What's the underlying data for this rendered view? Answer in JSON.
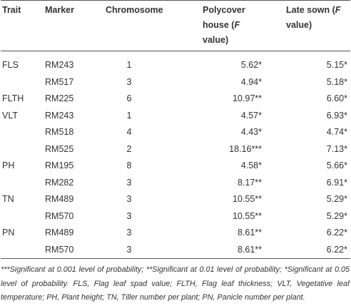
{
  "table": {
    "header": [
      "Trait",
      "Marker",
      "Chromosome",
      [
        "Polycover house (",
        "F",
        " value)"
      ],
      [
        "Late sown (",
        "F",
        " value)"
      ]
    ],
    "rows": [
      [
        "FLS",
        "RM243",
        1,
        "5.62*",
        "5.15*"
      ],
      [
        null,
        "RM517",
        3,
        "4.94*",
        "5.18*"
      ],
      [
        "FLTH",
        "RM225",
        6,
        "10.97**",
        "6.60*"
      ],
      [
        "VLT",
        "RM243",
        1,
        "4.57*",
        "6.93*"
      ],
      [
        null,
        "RM518",
        4,
        "4.43*",
        "4.74*"
      ],
      [
        null,
        "RM525",
        2,
        "18.16***",
        "7.13*"
      ],
      [
        "PH",
        "RM195",
        8,
        "4.58*",
        "5.66*"
      ],
      [
        null,
        "RM282",
        3,
        "8.17**",
        "6.91*"
      ],
      [
        "TN",
        "RM489",
        3,
        "10.55**",
        "5.29*"
      ],
      [
        null,
        "RM570",
        3,
        "10.55**",
        "5.29*"
      ],
      [
        "PN",
        "RM489",
        3,
        "8.61**",
        "6.22*"
      ],
      [
        null,
        "RM570",
        3,
        "8.61**",
        "6.22*"
      ]
    ],
    "footnote": "***Significant at 0.001 level of probability; **Significant at 0.01 level of probability; *Significant at 0.05 level of probability. FLS, Flag leaf spad value; FLTH, Flag leaf thickness; VLT, Vegetative leaf temperature; PH, Plant height; TN, Tiller number per plant; PN, Panicle number per plant."
  }
}
